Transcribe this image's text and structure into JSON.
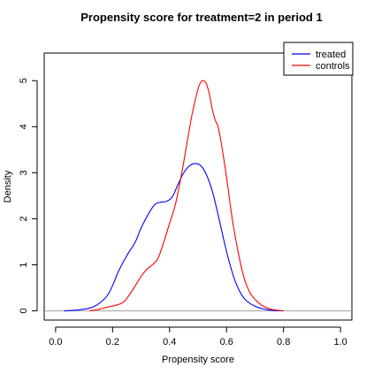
{
  "chart_data": {
    "type": "line",
    "title": "Propensity score for treatment=2 in period 1",
    "xlabel": "Propensity score",
    "ylabel": "Density",
    "xlim": [
      -0.04,
      1.04
    ],
    "ylim": [
      -0.2,
      5.6
    ],
    "xticks": [
      0.0,
      0.2,
      0.4,
      0.6,
      0.8,
      1.0
    ],
    "xtick_labels": [
      "0.0",
      "0.2",
      "0.4",
      "0.6",
      "0.8",
      "1.0"
    ],
    "yticks": [
      0,
      1,
      2,
      3,
      4,
      5
    ],
    "ytick_labels": [
      "0",
      "1",
      "2",
      "3",
      "4",
      "5"
    ],
    "grid": false,
    "legend_position": "top-right",
    "series": [
      {
        "name": "treated",
        "color": "#0000ff",
        "x": [
          0.03,
          0.08,
          0.12,
          0.15,
          0.18,
          0.2,
          0.22,
          0.25,
          0.28,
          0.3,
          0.33,
          0.35,
          0.37,
          0.39,
          0.41,
          0.43,
          0.45,
          0.47,
          0.49,
          0.51,
          0.53,
          0.55,
          0.57,
          0.59,
          0.61,
          0.63,
          0.65,
          0.67,
          0.7,
          0.73,
          0.76,
          0.8
        ],
        "y": [
          0.0,
          0.02,
          0.06,
          0.15,
          0.32,
          0.55,
          0.85,
          1.2,
          1.5,
          1.8,
          2.15,
          2.32,
          2.36,
          2.38,
          2.48,
          2.75,
          3.0,
          3.15,
          3.2,
          3.15,
          2.95,
          2.6,
          2.1,
          1.55,
          1.05,
          0.65,
          0.38,
          0.22,
          0.1,
          0.04,
          0.01,
          0.0
        ]
      },
      {
        "name": "controls",
        "color": "#ff0000",
        "x": [
          0.12,
          0.15,
          0.18,
          0.21,
          0.24,
          0.27,
          0.3,
          0.32,
          0.34,
          0.36,
          0.38,
          0.4,
          0.42,
          0.44,
          0.46,
          0.48,
          0.5,
          0.51,
          0.52,
          0.53,
          0.54,
          0.55,
          0.56,
          0.57,
          0.58,
          0.6,
          0.62,
          0.64,
          0.66,
          0.68,
          0.7,
          0.73,
          0.76,
          0.8
        ],
        "y": [
          0.0,
          0.03,
          0.08,
          0.12,
          0.2,
          0.45,
          0.75,
          0.9,
          1.0,
          1.15,
          1.5,
          1.9,
          2.3,
          2.9,
          3.6,
          4.3,
          4.82,
          4.97,
          5.0,
          4.92,
          4.7,
          4.38,
          4.15,
          4.0,
          3.7,
          2.9,
          2.0,
          1.3,
          0.75,
          0.42,
          0.25,
          0.1,
          0.03,
          0.0
        ]
      }
    ]
  }
}
